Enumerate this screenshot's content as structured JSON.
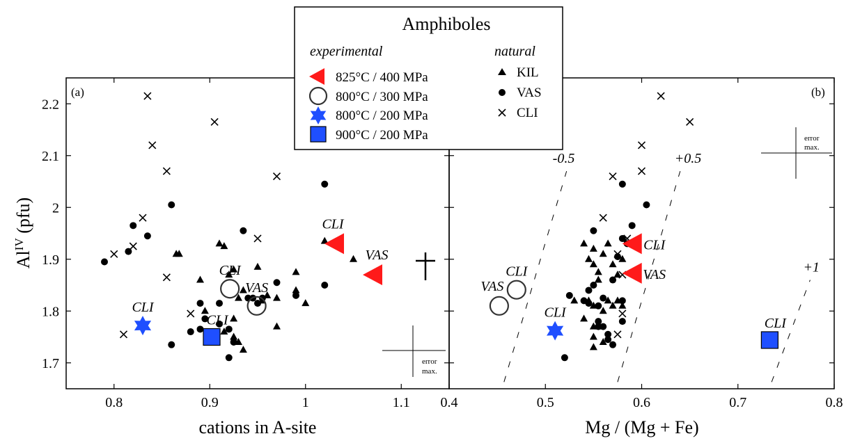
{
  "chart_data": [
    {
      "type": "scatter",
      "panel_label": "(a)",
      "xlabel": "cations in A-site",
      "ylabel": "Al",
      "ylabel_sup": "IV",
      "ylabel_unit": " (pfu)",
      "xlim": [
        0.75,
        1.15
      ],
      "ylim": [
        1.65,
        2.25
      ],
      "xticks": [
        0.8,
        0.9,
        1,
        1.1
      ],
      "xtick_labels": [
        "0.8",
        "0.9",
        "1",
        "1.1"
      ],
      "yticks": [
        1.7,
        1.8,
        1.9,
        2.0,
        2.1,
        2.2
      ],
      "ytick_labels": [
        "1.7",
        "1.8",
        "1.9",
        "2",
        "2.1",
        "2.2"
      ],
      "series": [
        {
          "name": "KIL",
          "marker": "triangle",
          "points": [
            [
              0.865,
              1.91
            ],
            [
              0.868,
              1.91
            ],
            [
              0.89,
              1.86
            ],
            [
              0.895,
              1.8
            ],
            [
              0.91,
              1.93
            ],
            [
              0.915,
              1.925
            ],
            [
              0.92,
              1.87
            ],
            [
              0.925,
              1.88
            ],
            [
              0.93,
              1.825
            ],
            [
              0.935,
              1.84
            ],
            [
              0.95,
              1.885
            ],
            [
              0.955,
              1.82
            ],
            [
              0.96,
              1.83
            ],
            [
              0.97,
              1.825
            ],
            [
              0.97,
              1.77
            ],
            [
              0.99,
              1.875
            ],
            [
              0.99,
              1.84
            ],
            [
              1.0,
              1.815
            ],
            [
              1.02,
              1.935
            ],
            [
              1.05,
              1.9
            ],
            [
              0.925,
              1.75
            ],
            [
              0.93,
              1.74
            ],
            [
              0.935,
              1.725
            ],
            [
              0.925,
              1.785
            ],
            [
              0.915,
              1.76
            ]
          ]
        },
        {
          "name": "VAS",
          "marker": "circle",
          "points": [
            [
              0.79,
              1.895
            ],
            [
              0.815,
              1.915
            ],
            [
              0.82,
              1.965
            ],
            [
              0.835,
              1.945
            ],
            [
              0.86,
              2.005
            ],
            [
              0.89,
              1.815
            ],
            [
              0.89,
              1.765
            ],
            [
              0.895,
              1.785
            ],
            [
              0.91,
              1.775
            ],
            [
              0.91,
              1.815
            ],
            [
              0.92,
              1.71
            ],
            [
              0.92,
              1.765
            ],
            [
              0.925,
              1.74
            ],
            [
              0.935,
              1.955
            ],
            [
              0.94,
              1.825
            ],
            [
              0.945,
              1.825
            ],
            [
              0.95,
              1.815
            ],
            [
              0.955,
              1.825
            ],
            [
              0.97,
              1.855
            ],
            [
              0.99,
              1.83
            ],
            [
              1.02,
              2.045
            ],
            [
              1.02,
              1.85
            ],
            [
              0.86,
              1.735
            ],
            [
              0.88,
              1.76
            ]
          ]
        },
        {
          "name": "CLI",
          "marker": "x",
          "points": [
            [
              0.8,
              1.91
            ],
            [
              0.82,
              1.925
            ],
            [
              0.83,
              1.98
            ],
            [
              0.835,
              2.215
            ],
            [
              0.84,
              2.12
            ],
            [
              0.855,
              2.07
            ],
            [
              0.855,
              1.865
            ],
            [
              0.81,
              1.755
            ],
            [
              0.88,
              1.795
            ],
            [
              0.905,
              2.165
            ],
            [
              0.95,
              1.94
            ],
            [
              0.97,
              2.06
            ]
          ]
        }
      ],
      "experimental": [
        {
          "name": "825°C / 400 MPa",
          "marker": "left-triangle",
          "color": "#ff1a1a",
          "points": [
            {
              "x": 1.03,
              "y": 1.93,
              "label": "CLI"
            },
            {
              "x": 1.07,
              "y": 1.87,
              "label": "VAS"
            }
          ]
        },
        {
          "name": "800°C / 300 MPa",
          "marker": "open-circle",
          "color": "#333333",
          "points": [
            {
              "x": 0.921,
              "y": 1.843,
              "label": "CLI"
            },
            {
              "x": 0.949,
              "y": 1.81,
              "label": "VAS"
            }
          ]
        },
        {
          "name": "800°C / 200 MPa",
          "marker": "star",
          "color": "#1f4fff",
          "points": [
            {
              "x": 0.83,
              "y": 1.772,
              "label": "CLI"
            }
          ]
        },
        {
          "name": "900°C / 200 MPa",
          "marker": "square",
          "color": "#1f4fff",
          "points": [
            {
              "x": 0.902,
              "y": 1.75,
              "label": "CLI"
            }
          ]
        }
      ],
      "error_max_label": "error max."
    },
    {
      "type": "scatter",
      "panel_label": "(b)",
      "xlabel": "Mg / (Mg + Fe)",
      "xlim": [
        0.4,
        0.8
      ],
      "ylim": [
        1.65,
        2.25
      ],
      "xticks": [
        0.4,
        0.5,
        0.6,
        0.7,
        0.8
      ],
      "xtick_labels": [
        "0.4",
        "0.5",
        "0.6",
        "0.7",
        "0.8"
      ],
      "series": [
        {
          "name": "KIL",
          "marker": "triangle",
          "points": [
            [
              0.54,
              1.93
            ],
            [
              0.545,
              1.9
            ],
            [
              0.55,
              1.92
            ],
            [
              0.55,
              1.89
            ],
            [
              0.555,
              1.875
            ],
            [
              0.56,
              1.91
            ],
            [
              0.555,
              1.86
            ],
            [
              0.565,
              1.93
            ],
            [
              0.57,
              1.89
            ],
            [
              0.575,
              1.87
            ],
            [
              0.58,
              1.9
            ],
            [
              0.545,
              1.82
            ],
            [
              0.55,
              1.81
            ],
            [
              0.55,
              1.77
            ],
            [
              0.555,
              1.77
            ],
            [
              0.56,
              1.8
            ],
            [
              0.565,
              1.82
            ],
            [
              0.57,
              1.81
            ],
            [
              0.575,
              1.82
            ],
            [
              0.53,
              1.82
            ],
            [
              0.54,
              1.785
            ],
            [
              0.55,
              1.75
            ],
            [
              0.55,
              1.73
            ],
            [
              0.56,
              1.74
            ],
            [
              0.58,
              1.81
            ]
          ]
        },
        {
          "name": "VAS",
          "marker": "circle",
          "points": [
            [
              0.52,
              1.71
            ],
            [
              0.525,
              1.83
            ],
            [
              0.54,
              1.82
            ],
            [
              0.545,
              1.815
            ],
            [
              0.55,
              1.955
            ],
            [
              0.55,
              1.85
            ],
            [
              0.555,
              1.81
            ],
            [
              0.555,
              1.78
            ],
            [
              0.56,
              1.825
            ],
            [
              0.565,
              1.755
            ],
            [
              0.565,
              1.745
            ],
            [
              0.57,
              1.735
            ],
            [
              0.58,
              1.82
            ],
            [
              0.58,
              2.045
            ],
            [
              0.58,
              1.94
            ],
            [
              0.585,
              1.93
            ],
            [
              0.59,
              1.965
            ],
            [
              0.605,
              2.005
            ],
            [
              0.56,
              1.77
            ],
            [
              0.57,
              1.86
            ],
            [
              0.575,
              1.905
            ],
            [
              0.545,
              1.84
            ],
            [
              0.58,
              1.78
            ],
            [
              0.555,
              1.77
            ]
          ]
        },
        {
          "name": "CLI",
          "marker": "x",
          "points": [
            [
              0.56,
              1.98
            ],
            [
              0.57,
              2.06
            ],
            [
              0.575,
              1.91
            ],
            [
              0.58,
              1.87
            ],
            [
              0.585,
              1.94
            ],
            [
              0.6,
              2.12
            ],
            [
              0.6,
              2.07
            ],
            [
              0.62,
              2.215
            ],
            [
              0.65,
              2.165
            ],
            [
              0.58,
              1.795
            ],
            [
              0.575,
              1.755
            ]
          ]
        }
      ],
      "experimental": [
        {
          "name": "825°C / 400 MPa",
          "marker": "left-triangle",
          "color": "#ff1a1a",
          "points": [
            {
              "x": 0.59,
              "y": 1.93,
              "label": "CLI"
            },
            {
              "x": 0.59,
              "y": 1.873,
              "label": "VAS"
            }
          ]
        },
        {
          "name": "800°C / 300 MPa",
          "marker": "open-circle",
          "color": "#333333",
          "points": [
            {
              "x": 0.47,
              "y": 1.841,
              "label": "CLI"
            },
            {
              "x": 0.452,
              "y": 1.81,
              "label": "VAS"
            }
          ]
        },
        {
          "name": "800°C / 200 MPa",
          "marker": "star",
          "color": "#1f4fff",
          "points": [
            {
              "x": 0.51,
              "y": 1.762,
              "label": "CLI"
            }
          ]
        },
        {
          "name": "900°C / 200 MPa",
          "marker": "square",
          "color": "#1f4fff",
          "points": [
            {
              "x": 0.733,
              "y": 1.744,
              "label": "CLI"
            }
          ]
        }
      ],
      "reference_lines": [
        {
          "label": "-0.5",
          "x1": 0.457,
          "y1": 1.663,
          "x2": 0.522,
          "y2": 2.07
        },
        {
          "label": "+0.5",
          "x1": 0.575,
          "y1": 1.663,
          "x2": 0.64,
          "y2": 2.07
        },
        {
          "label": "+1",
          "x1": 0.735,
          "y1": 1.663,
          "x2": 0.775,
          "y2": 1.86
        }
      ],
      "error_max_label": "error max."
    }
  ],
  "legend": {
    "title": "Amphiboles",
    "experimental_heading": "experimental",
    "natural_heading": "natural",
    "experimental_items": [
      "825°C / 400 MPa",
      "800°C / 300 MPa",
      "800°C / 200 MPa",
      "900°C / 200 MPa"
    ],
    "natural_items": [
      "KIL",
      "VAS",
      "CLI"
    ]
  },
  "colors": {
    "red": "#ff1a1a",
    "blue": "#1f4fff",
    "open_circle": "#333333"
  }
}
